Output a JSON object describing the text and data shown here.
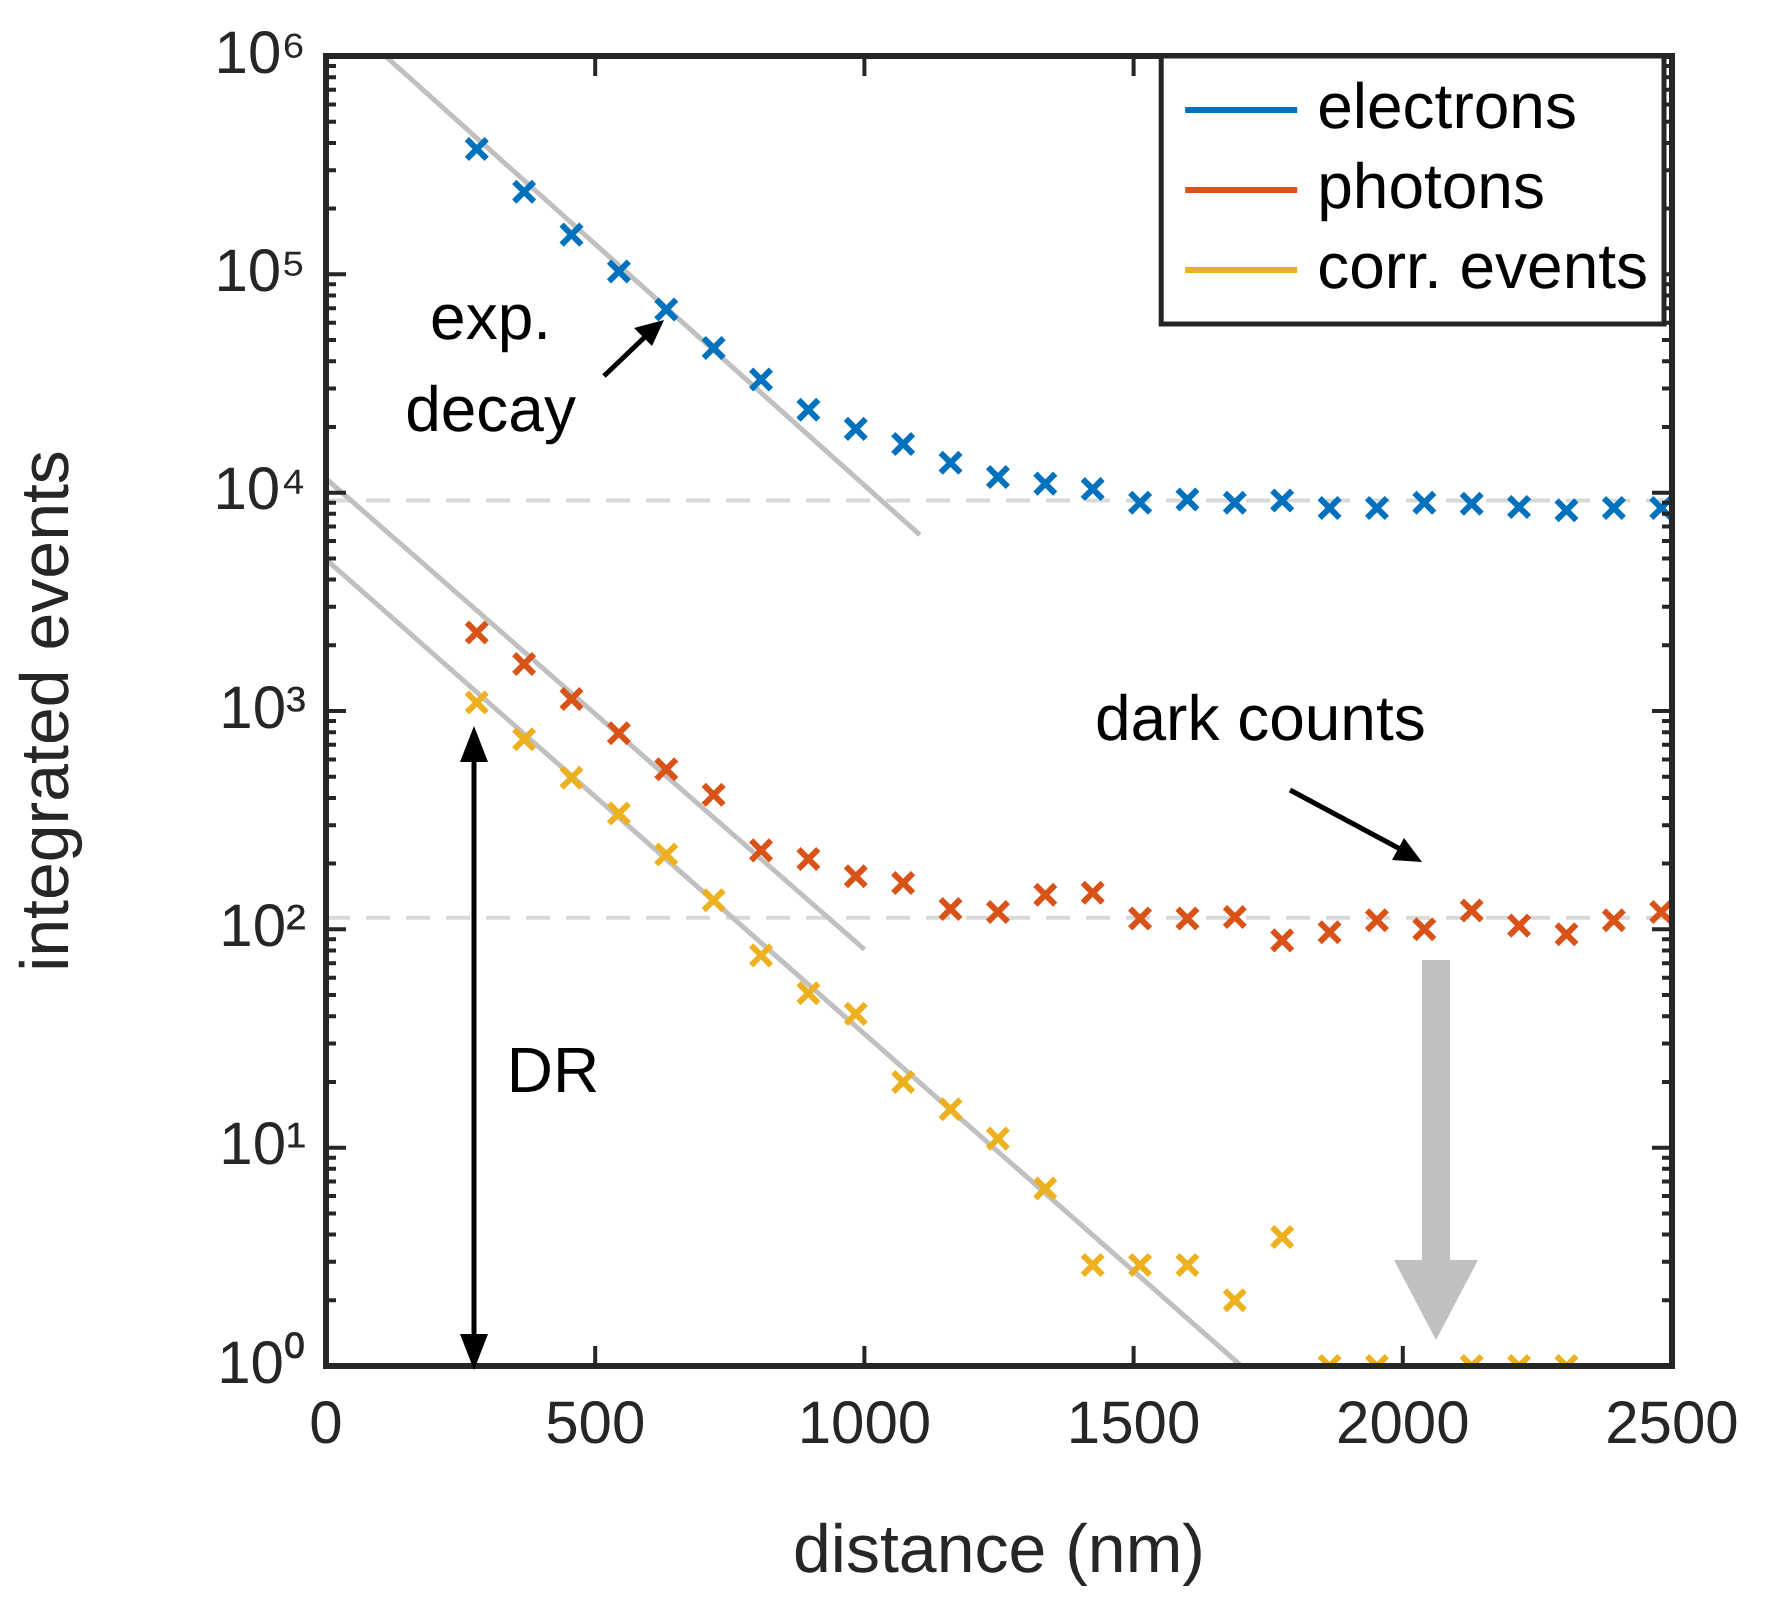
{
  "chart_data": {
    "type": "scatter",
    "xlabel": "distance (nm)",
    "ylabel": "integrated events",
    "xlim": [
      0,
      2500
    ],
    "xticks": [
      0,
      500,
      1000,
      1500,
      2000,
      2500
    ],
    "ylim": [
      1,
      1000000
    ],
    "yticks": [
      {
        "value": 1,
        "label": "10⁰"
      },
      {
        "value": 10,
        "label": "10¹"
      },
      {
        "value": 100,
        "label": "10²"
      },
      {
        "value": 1000,
        "label": "10³"
      },
      {
        "value": 10000,
        "label": "10⁴"
      },
      {
        "value": 100000,
        "label": "10⁵"
      },
      {
        "value": 1000000,
        "label": "10⁶"
      }
    ],
    "log": "y",
    "grid": false,
    "legend": "top right",
    "marker": "cross",
    "x": [
      280,
      368,
      456,
      544,
      632,
      720,
      808,
      896,
      984,
      1072,
      1160,
      1248,
      1336,
      1424,
      1512,
      1600,
      1688,
      1776,
      1864,
      1952,
      2040,
      2128,
      2216,
      2304,
      2392,
      2480
    ],
    "series": [
      {
        "name": "electrons",
        "color": "#0072bd",
        "values": [
          375000,
          239000,
          152000,
          103000,
          69000,
          46000,
          33000,
          24000,
          19600,
          16700,
          13700,
          11800,
          11000,
          10400,
          9000,
          9300,
          9000,
          9200,
          8500,
          8500,
          9000,
          8900,
          8600,
          8300,
          8500,
          8500
        ]
      },
      {
        "name": "photons",
        "color": "#d95319",
        "values": [
          2290,
          1640,
          1135,
          791,
          541,
          413,
          230,
          210,
          175,
          163,
          124,
          120,
          144,
          147,
          112,
          112,
          114,
          89,
          97,
          110,
          100,
          122,
          104,
          95,
          110,
          120
        ]
      },
      {
        "name": "corr. events",
        "color": "#edb120",
        "values": [
          1094,
          743,
          495,
          339,
          220,
          136,
          76,
          51,
          41,
          20,
          15,
          11,
          6.5,
          2.9,
          2.9,
          2.9,
          2.0,
          3.9,
          1,
          1,
          null,
          1,
          1,
          1,
          null,
          null
        ]
      },
      {
        "type": "line",
        "color": "#c0c0c0",
        "marker": "none",
        "x": [
          110,
          1103
        ],
        "values": [
          1000000,
          6400
        ]
      },
      {
        "type": "line",
        "color": "#c0c0c0",
        "marker": "none",
        "x": [
          0,
          1000
        ],
        "values": [
          11600,
          81
        ]
      },
      {
        "type": "line",
        "color": "#c0c0c0",
        "marker": "none",
        "x": [
          0,
          1700
        ],
        "values": [
          4950,
          1
        ]
      }
    ],
    "ref_lines": [
      {
        "axis": "y",
        "value": 9200,
        "color": "#d9d9d9",
        "line_style": "dashed"
      },
      {
        "axis": "y",
        "value": 113,
        "color": "#d9d9d9",
        "line_style": "dashed"
      }
    ],
    "annotations": [
      "exp. decay",
      "dark counts",
      "DR"
    ]
  }
}
